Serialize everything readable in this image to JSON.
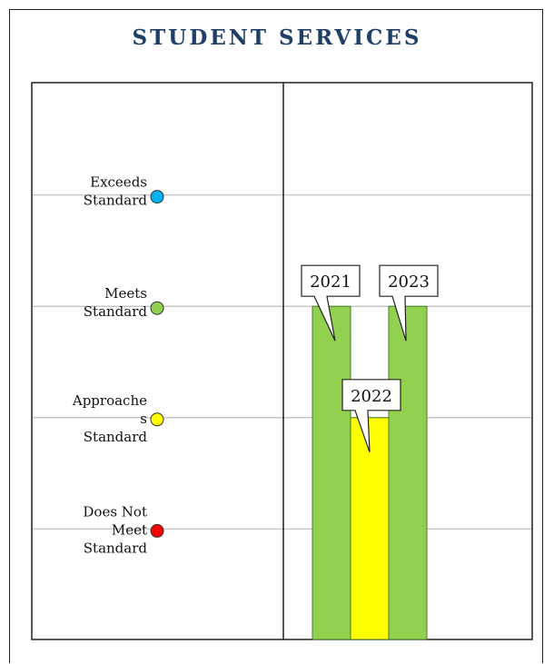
{
  "title": "STUDENT SERVICES",
  "chart_data": {
    "type": "bar",
    "title": "STUDENT SERVICES",
    "levels": [
      {
        "key": "does_not_meet",
        "label_lines": [
          "Does Not",
          "Meet",
          "Standard"
        ],
        "value": 1,
        "color": "#ff0000"
      },
      {
        "key": "approaches",
        "label_lines": [
          "Approache",
          "s",
          "Standard"
        ],
        "value": 2,
        "color": "#ffff00"
      },
      {
        "key": "meets",
        "label_lines": [
          "Meets",
          "Standard"
        ],
        "value": 3,
        "color": "#92d050"
      },
      {
        "key": "exceeds",
        "label_lines": [
          "Exceeds",
          "Standard"
        ],
        "value": 4,
        "color": "#00b0f0"
      }
    ],
    "categories": [
      "2021",
      "2022",
      "2023"
    ],
    "values": [
      3,
      2,
      3
    ],
    "bar_colors": [
      "#92d050",
      "#ffff00",
      "#92d050"
    ],
    "ylim": [
      0,
      5
    ],
    "grid": true,
    "xlabel": "",
    "ylabel": ""
  }
}
